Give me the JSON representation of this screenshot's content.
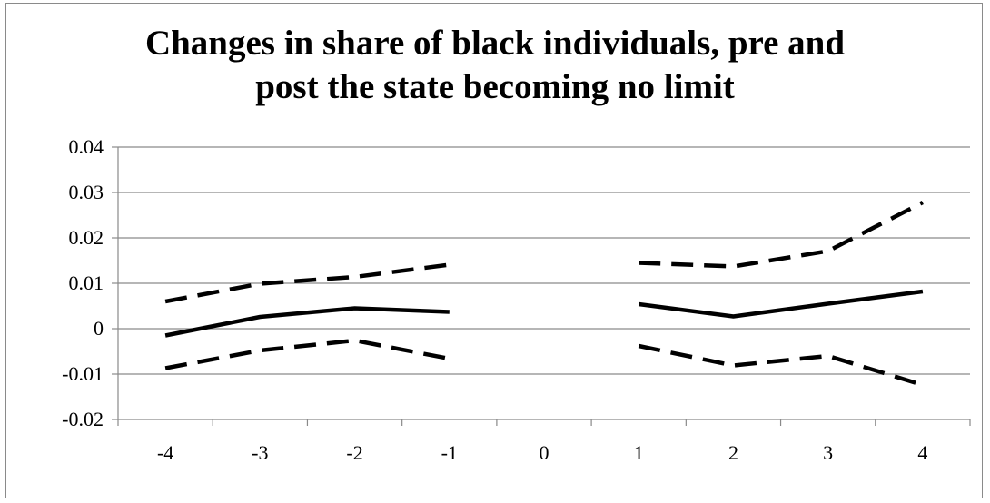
{
  "chart_data": {
    "type": "line",
    "title_lines": [
      "Changes in share of black individuals, pre and",
      "post the state becoming no limit"
    ],
    "title": "Changes in share of black individuals, pre and post the state becoming no limit",
    "xlabel": "",
    "ylabel": "",
    "x": [
      -4,
      -3,
      -2,
      -1,
      0,
      1,
      2,
      3,
      4
    ],
    "x_tick_labels": [
      "-4",
      "-3",
      "-2",
      "-1",
      "0",
      "1",
      "2",
      "3",
      "4"
    ],
    "y_tick_labels": [
      "0.04",
      "0.03",
      "0.02",
      "0.01",
      "0",
      "-0.01",
      "-0.02"
    ],
    "y_ticks": [
      0.04,
      0.03,
      0.02,
      0.01,
      0,
      -0.01,
      -0.02
    ],
    "ylim": [
      -0.02,
      0.04
    ],
    "grid": "horizontal",
    "legend": "none",
    "series": [
      {
        "style": "solid",
        "values": [
          -0.0015,
          0.0026,
          0.0045,
          0.0037,
          null,
          0.0054,
          0.0027,
          0.0055,
          0.0082
        ]
      },
      {
        "style": "dashed",
        "values": [
          0.006,
          0.0099,
          0.0114,
          0.0141,
          null,
          0.0145,
          0.0137,
          0.0171,
          0.0278
        ]
      },
      {
        "style": "dashed",
        "values": [
          -0.0087,
          -0.0048,
          -0.0026,
          -0.0066,
          null,
          -0.0038,
          -0.0081,
          -0.006,
          -0.0124
        ]
      }
    ],
    "colors": {
      "line": "#000000",
      "grid": "#8a8a8a",
      "axis": "#8a8a8a"
    }
  }
}
